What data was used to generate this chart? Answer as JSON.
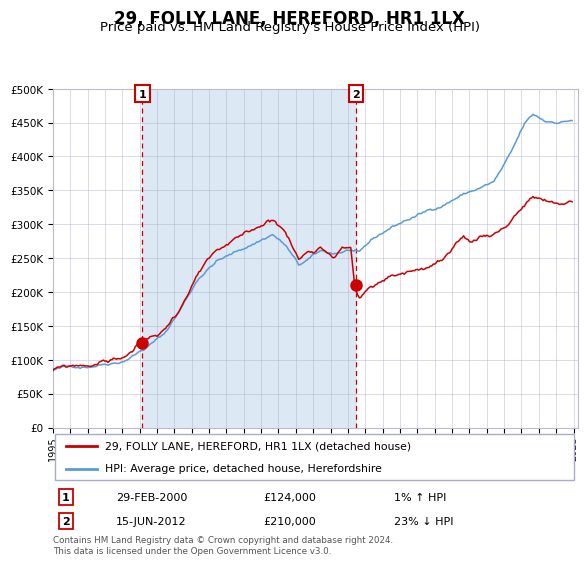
{
  "title": "29, FOLLY LANE, HEREFORD, HR1 1LX",
  "subtitle": "Price paid vs. HM Land Registry's House Price Index (HPI)",
  "legend_line1": "29, FOLLY LANE, HEREFORD, HR1 1LX (detached house)",
  "legend_line2": "HPI: Average price, detached house, Herefordshire",
  "annotation1_label": "1",
  "annotation1_date": "29-FEB-2000",
  "annotation1_price": 124000,
  "annotation1_hpi_text": "1% ↑ HPI",
  "annotation2_label": "2",
  "annotation2_date": "15-JUN-2012",
  "annotation2_price": 210000,
  "annotation2_hpi_text": "23% ↓ HPI",
  "footer": "Contains HM Land Registry data © Crown copyright and database right 2024.\nThis data is licensed under the Open Government Licence v3.0.",
  "ylim": [
    0,
    500000
  ],
  "hpi_color": "#5b9bd5",
  "price_color": "#cc0000",
  "bg_color": "#dce9f5",
  "grid_color": "#aaaacc",
  "annotation_box_color": "#cc0000",
  "vline_color": "#cc0000",
  "title_fontsize": 12,
  "subtitle_fontsize": 10
}
